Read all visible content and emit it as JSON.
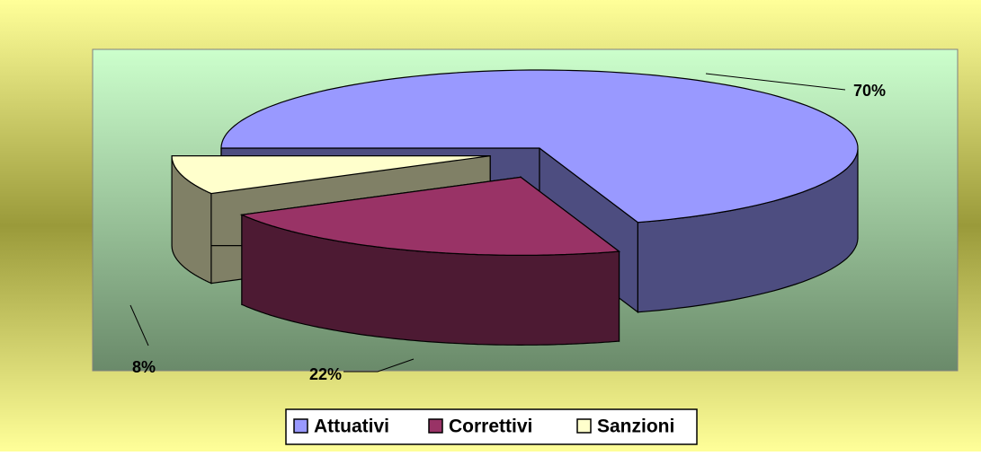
{
  "chart_data": {
    "type": "pie3d",
    "categories": [
      "Attuativi",
      "Correttivi",
      "Sanzioni"
    ],
    "values": [
      70,
      22,
      8
    ],
    "value_labels": [
      "70%",
      "22%",
      "8%"
    ],
    "colors": [
      "#9999ff",
      "#993366",
      "#ffffcc"
    ],
    "legend": "bottom"
  }
}
